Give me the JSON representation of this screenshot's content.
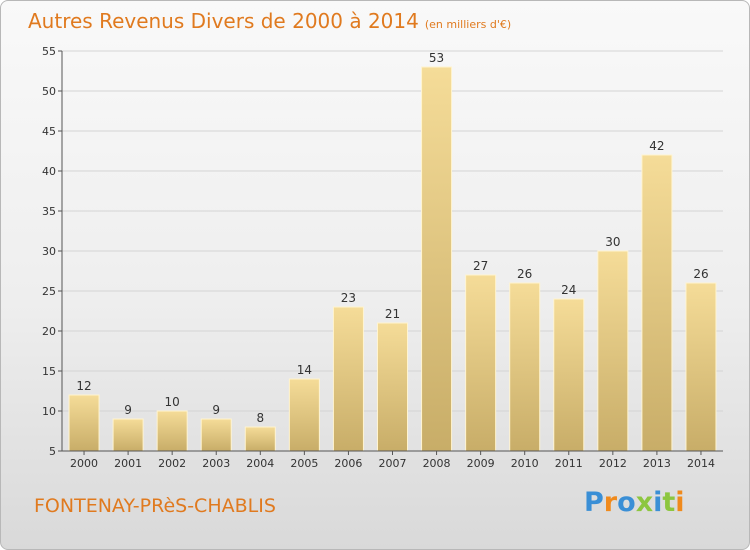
{
  "chart_data": {
    "type": "bar",
    "title": "Autres Revenus Divers de 2000 à 2014",
    "subtitle": "(en milliers d'€)",
    "categories": [
      "2000",
      "2001",
      "2002",
      "2003",
      "2004",
      "2005",
      "2006",
      "2007",
      "2008",
      "2009",
      "2010",
      "2011",
      "2012",
      "2013",
      "2014"
    ],
    "values": [
      12,
      9,
      10,
      9,
      8,
      14,
      23,
      21,
      53,
      27,
      26,
      24,
      30,
      42,
      26
    ],
    "ylim": [
      5,
      55
    ],
    "yticks": [
      5,
      10,
      15,
      20,
      25,
      30,
      35,
      40,
      45,
      50,
      55
    ],
    "grid": true,
    "xlabel": "",
    "ylabel": ""
  },
  "footer": {
    "commune": "FONTENAY-PRèS-CHABLIS",
    "logo": "Proxiti"
  },
  "colors": {
    "title": "#e07a1f",
    "bar_light": "#f5dc98",
    "bar_dark": "#c8ad68",
    "logo_letters": [
      "#3a8fd6",
      "#f08a1c",
      "#3a8fd6",
      "#8dc63f",
      "#3a8fd6",
      "#8dc63f",
      "#f08a1c"
    ]
  }
}
